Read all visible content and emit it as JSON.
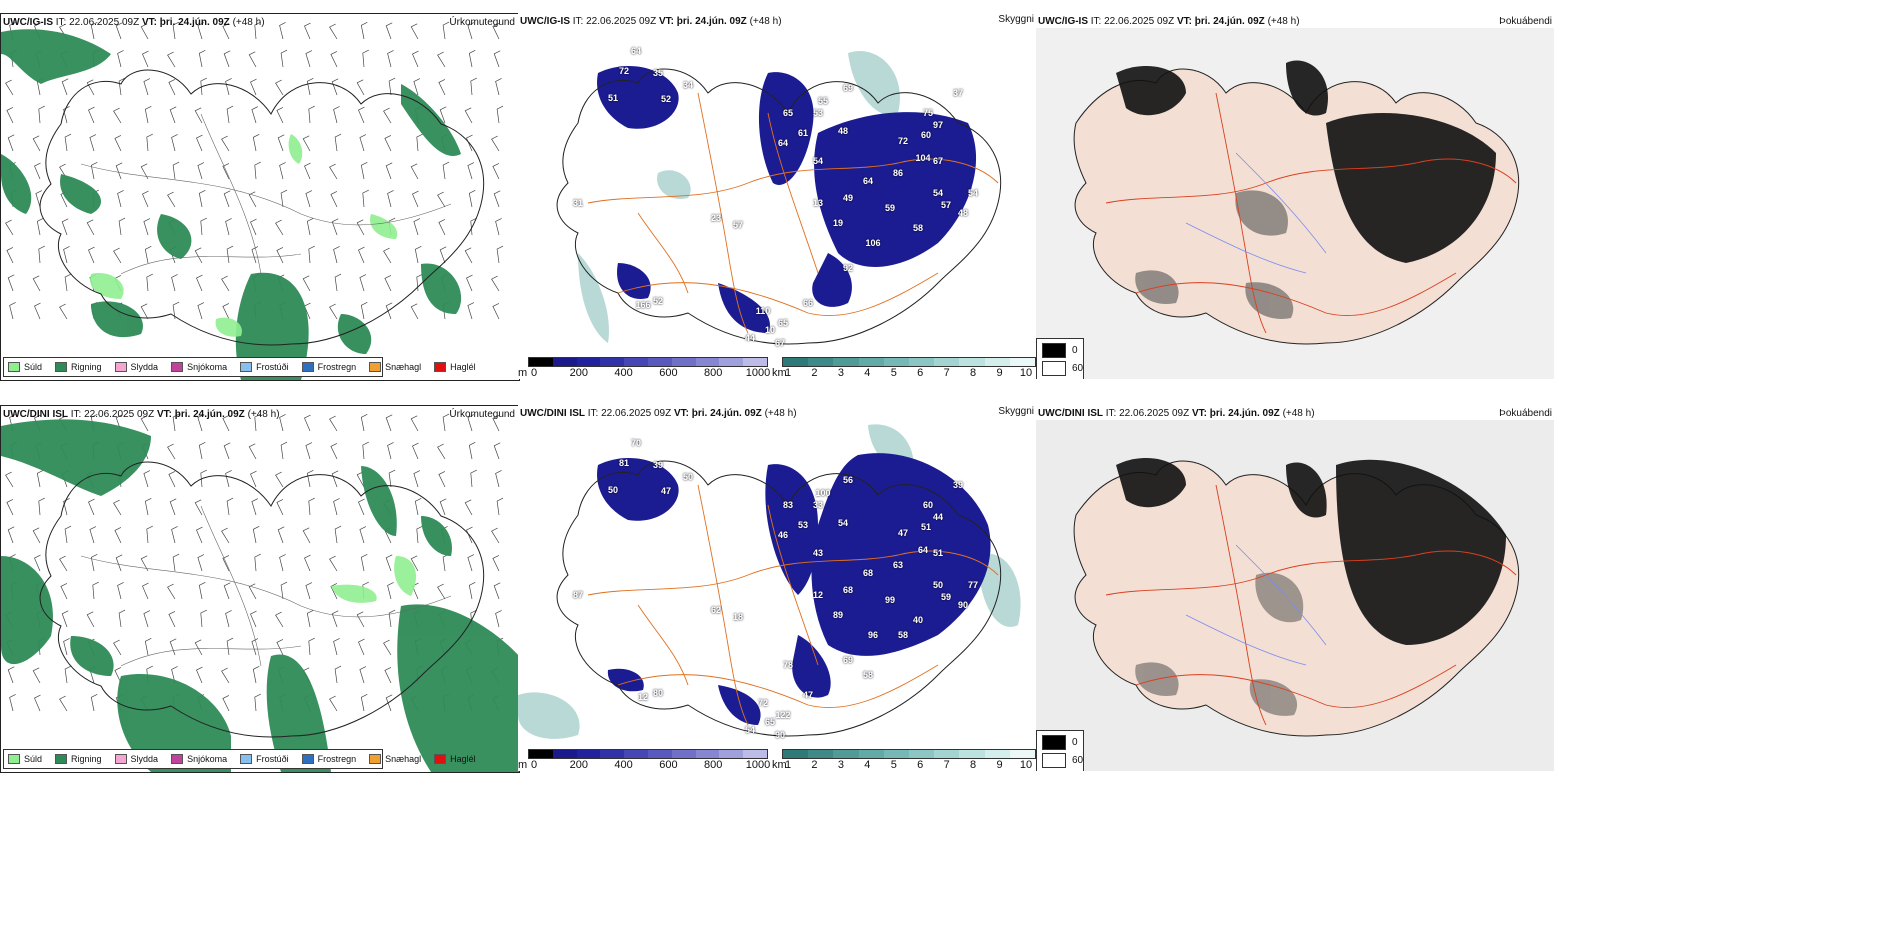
{
  "rows": [
    {
      "header": {
        "model": "UWC/IG-IS",
        "it": "IT: 22.06.2025 09Z",
        "vt_label": "VT:",
        "vt": "þri. 24.jún. 09Z",
        "lead": "(+48 h)"
      },
      "precip_title": "Úrkomutegund",
      "cloud_title": "Skyggni",
      "fog_title": "Þokuábendi",
      "cloud_labels": [
        "64",
        "72",
        "35",
        "51",
        "52",
        "34",
        "31",
        "69",
        "55",
        "53",
        "65",
        "48",
        "61",
        "64",
        "54",
        "75",
        "97",
        "37",
        "72",
        "60",
        "104",
        "67",
        "49",
        "64",
        "86",
        "54",
        "59",
        "57",
        "54",
        "48",
        "19",
        "106",
        "92",
        "66",
        "110",
        "65",
        "44",
        "10",
        "67",
        "166",
        "52",
        "23",
        "57",
        "13",
        "58"
      ]
    },
    {
      "header": {
        "model": "UWC/DINI ISL",
        "it": "IT: 22.06.2025 09Z",
        "vt_label": "VT:",
        "vt": "þri. 24.jún. 09Z",
        "lead": "(+48 h)"
      },
      "precip_title": "Úrkomutegund",
      "cloud_title": "Skyggni",
      "fog_title": "Þokuábendi",
      "cloud_labels": [
        "70",
        "81",
        "39",
        "50",
        "47",
        "50",
        "87",
        "56",
        "100",
        "33",
        "83",
        "54",
        "53",
        "46",
        "43",
        "60",
        "44",
        "39",
        "47",
        "51",
        "64",
        "51",
        "68",
        "68",
        "63",
        "50",
        "99",
        "59",
        "77",
        "90",
        "89",
        "96",
        "69",
        "47",
        "72",
        "122",
        "54",
        "65",
        "90",
        "12",
        "80",
        "62",
        "18",
        "12",
        "40",
        "58",
        "58",
        "78"
      ]
    }
  ],
  "precip_legend": [
    {
      "label": "Súld",
      "color": "#90ee90"
    },
    {
      "label": "Rigning",
      "color": "#2e8b57"
    },
    {
      "label": "Slydda",
      "color": "#f4a6d0"
    },
    {
      "label": "Snjókoma",
      "color": "#c0449c"
    },
    {
      "label": "Frostúði",
      "color": "#87bfef"
    },
    {
      "label": "Frostregn",
      "color": "#2f6fbf"
    },
    {
      "label": "Snæhagl",
      "color": "#f0a030"
    },
    {
      "label": "Haglél",
      "color": "#e01010"
    }
  ],
  "ceiling_bar": {
    "unit": "m",
    "ticks": [
      "0",
      "200",
      "400",
      "600",
      "800",
      "1000"
    ],
    "colors": [
      "#000000",
      "#1a1a8c",
      "#22229e",
      "#3232a8",
      "#4646b4",
      "#5a5abe",
      "#7070c8",
      "#8686d2",
      "#a0a0dc",
      "#bcbce6"
    ]
  },
  "vis_bar": {
    "unit": "km",
    "ticks": [
      "1",
      "2",
      "3",
      "4",
      "5",
      "6",
      "7",
      "8",
      "9",
      "10"
    ],
    "colors": [
      "#2e7a78",
      "#3f8a88",
      "#509a98",
      "#62aaa8",
      "#76b8b6",
      "#8cc6c4",
      "#a4d4d2",
      "#bce2e0",
      "#d4eeec",
      "#ecf8f7"
    ]
  },
  "fog_legend": [
    {
      "label": "0",
      "color": "#000000"
    },
    {
      "label": "60",
      "color": "#ffffff"
    }
  ],
  "colors": {
    "land_outline": "#222222",
    "roads": "#e07020",
    "ice_fill": "#f3dfd3",
    "sea": "#ffffff"
  }
}
